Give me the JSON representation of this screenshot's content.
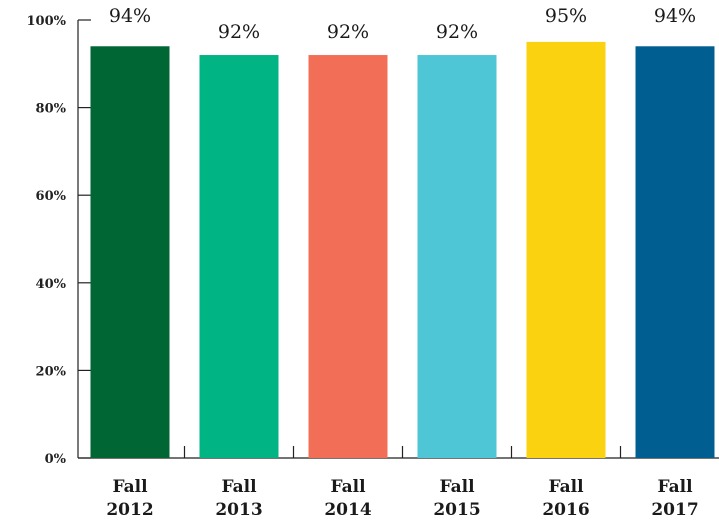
{
  "chart_data": {
    "type": "bar",
    "categories": [
      [
        "Fall",
        "2012"
      ],
      [
        "Fall",
        "2013"
      ],
      [
        "Fall",
        "2014"
      ],
      [
        "Fall",
        "2015"
      ],
      [
        "Fall",
        "2016"
      ],
      [
        "Fall",
        "2017"
      ]
    ],
    "values": [
      94,
      92,
      92,
      92,
      95,
      94
    ],
    "data_labels": [
      "94%",
      "92%",
      "92%",
      "92%",
      "95%",
      "94%"
    ],
    "colors": [
      "#006633",
      "#00b483",
      "#f36e57",
      "#4ec6d6",
      "#fad20f",
      "#005f90"
    ],
    "yticks": [
      0,
      20,
      40,
      60,
      80,
      100
    ],
    "ytick_labels": [
      "0%",
      "20%",
      "40%",
      "60%",
      "80%",
      "100%"
    ],
    "ylim": [
      0,
      100
    ],
    "grid": false,
    "legend": "none"
  }
}
